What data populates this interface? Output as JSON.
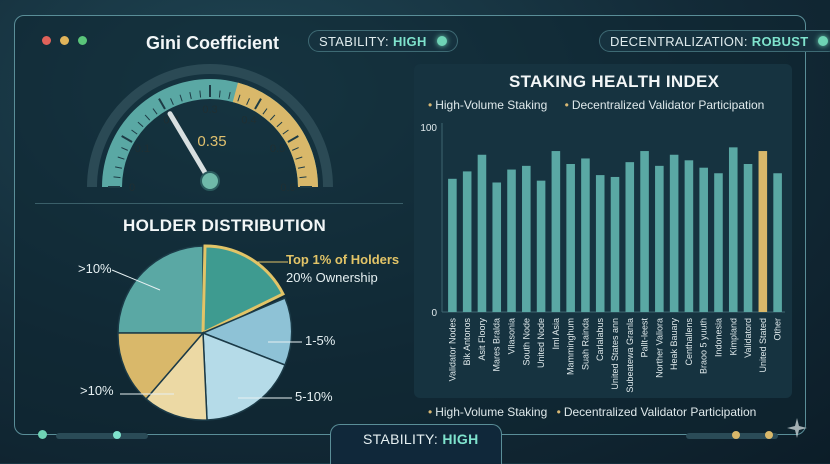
{
  "gauge": {
    "title": "Gini Coefficient",
    "value": 0.35,
    "value_label": "0.35",
    "min": 0,
    "max": 0.6,
    "ticks": [
      "0",
      "0.1",
      "0.2",
      "0.3",
      "0.4",
      "0.5",
      "0.6"
    ]
  },
  "status_top": {
    "label": "STABILITY:",
    "value": "HIGH"
  },
  "decentralization": {
    "label": "DECENTRALIZATION:",
    "value": "ROBUST"
  },
  "status_bottom": {
    "label": "STABILITY:",
    "value": "HIGH"
  },
  "pie": {
    "title": "HOLDER DISTRIBUTION",
    "callout_title": "Top 1% of Holders",
    "callout_sub": "20% Ownership",
    "labels": [
      ">10%",
      "1-5%",
      "5-10%",
      ">10%"
    ]
  },
  "colors": {
    "teal": "#5aa8a4",
    "gold": "#d9b86a",
    "light_blue": "#8ec2d6",
    "pale_blue": "#b5dbe8",
    "cream": "#ecd9a4",
    "accent": "#7fe3cd"
  },
  "chart_data": {
    "type": "bar",
    "title": "STAKING HEALTH INDEX",
    "legend": [
      "High-Volume Staking",
      "Decentralized Validator Participation"
    ],
    "legend_placement": "top and bottom",
    "ylim": [
      0,
      100
    ],
    "yticks": [
      "0",
      "100"
    ],
    "categories": [
      "Validator Nodes",
      "Bik Antonos",
      "Asit Floory",
      "Mares Bralda",
      "Vilasonia",
      "South Node",
      "United Node",
      "Iml Asia",
      "Mamminghum",
      "Suah Rainda",
      "Carlalabus",
      "United States ann",
      "Subeatewa Granla",
      "Pallt-leest",
      "Norther Valiora",
      "Heak Bauary",
      "Centhallens",
      "Braoo 5 yuuth",
      "Indonesia",
      "Kimpland",
      "Validatord",
      "United Stated",
      "Other"
    ],
    "values": [
      72,
      76,
      85,
      70,
      77,
      79,
      71,
      87,
      80,
      83,
      74,
      73,
      81,
      87,
      79,
      85,
      82,
      78,
      75,
      89,
      80,
      87,
      75
    ],
    "highlight_category": "United Stated",
    "bar_color": "#5aa8a4",
    "highlight_color": "#d9b86a"
  }
}
